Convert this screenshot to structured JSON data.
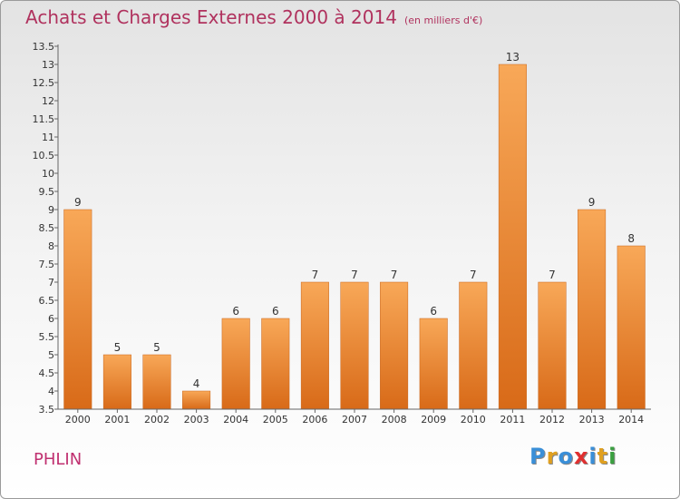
{
  "header": {
    "title": "Achats et Charges Externes 2000 à 2014",
    "unit": "(en milliers d'€)"
  },
  "footer": {
    "commune": "PHLIN",
    "logo": "Proxiti"
  },
  "colors": {
    "bar_top": "#f8a858",
    "bar_bottom": "#d86a18",
    "title": "#b0325e"
  },
  "chart_data": {
    "type": "bar",
    "categories": [
      "2000",
      "2001",
      "2002",
      "2003",
      "2004",
      "2005",
      "2006",
      "2007",
      "2008",
      "2009",
      "2010",
      "2011",
      "2012",
      "2013",
      "2014"
    ],
    "values": [
      9,
      5,
      5,
      4,
      6,
      6,
      7,
      7,
      7,
      6,
      7,
      13,
      7,
      9,
      8
    ],
    "ylim": [
      3.5,
      13.5
    ],
    "yticks": [
      "3.5",
      "4",
      "4.5",
      "5",
      "5.5",
      "6",
      "6.5",
      "7",
      "7.5",
      "8",
      "8.5",
      "9",
      "9.5",
      "10",
      "10.5",
      "11",
      "11.5",
      "12",
      "12.5",
      "13",
      "13.5"
    ],
    "grid": false,
    "title": "Achats et Charges Externes 2000 à 2014",
    "xlabel": "",
    "ylabel": ""
  }
}
